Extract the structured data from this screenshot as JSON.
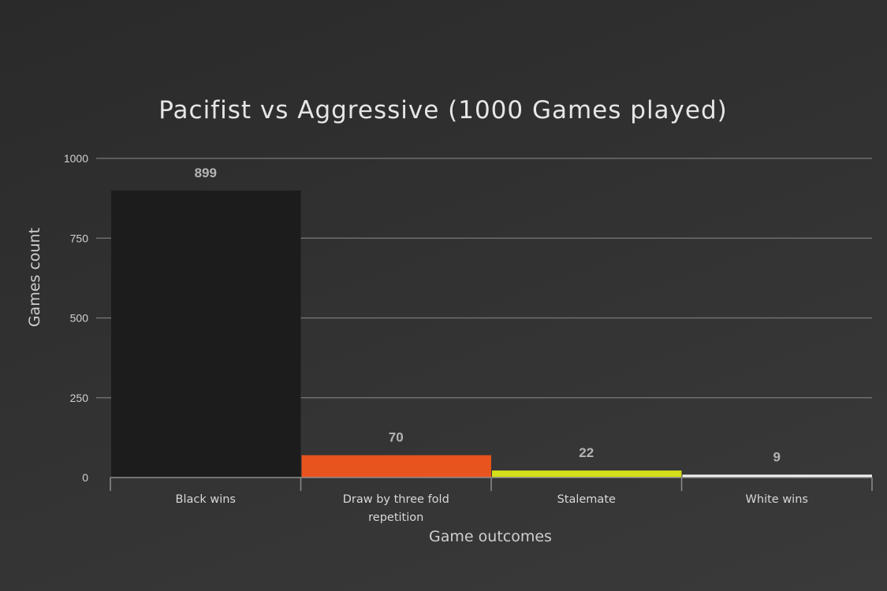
{
  "chart_data": {
    "type": "bar",
    "title": "Pacifist vs Aggressive (1000 Games played)",
    "xlabel": "Game outcomes",
    "ylabel": "Games count",
    "categories": [
      [
        "Black wins"
      ],
      [
        "Draw by three fold",
        "repetition"
      ],
      [
        "Stalemate"
      ],
      [
        "White wins"
      ]
    ],
    "values": [
      899,
      70,
      22,
      9
    ],
    "colors": [
      "#1c1c1c",
      "#e8541e",
      "#d4de1a",
      "#f2f2f2"
    ],
    "ylim": [
      0,
      1000
    ],
    "yticks": [
      0,
      250,
      500,
      750,
      1000
    ],
    "grid": true,
    "legend": "none"
  }
}
